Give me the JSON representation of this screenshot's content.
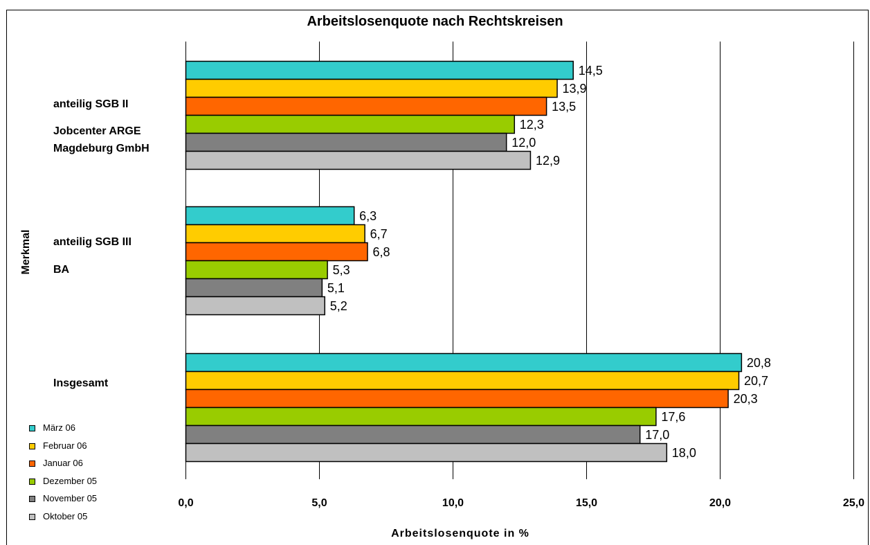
{
  "chart_data": {
    "type": "bar",
    "orientation": "horizontal",
    "title": "Arbeitslosenquote nach Rechtskreisen",
    "xlabel": "Arbeitslosenquote in %",
    "ylabel": "Merkmal",
    "xlim": [
      0,
      25
    ],
    "xticks": [
      "0,0",
      "5,0",
      "10,0",
      "15,0",
      "20,0",
      "25,0"
    ],
    "grid": "vertical",
    "legend_position": "bottom-left",
    "categories": [
      [
        "anteilig SGB II",
        "Jobcenter ARGE",
        "Magdeburg GmbH"
      ],
      [
        "anteilig SGB III",
        "BA"
      ],
      [
        "Insgesamt"
      ]
    ],
    "series": [
      {
        "name": "März 06",
        "color": "#33CCCC",
        "values": [
          14.5,
          6.3,
          20.8
        ],
        "labels": [
          "14,5",
          "6,3",
          "20,8"
        ]
      },
      {
        "name": "Februar 06",
        "color": "#FFCC00",
        "values": [
          13.9,
          6.7,
          20.7
        ],
        "labels": [
          "13,9",
          "6,7",
          "20,7"
        ]
      },
      {
        "name": "Januar 06",
        "color": "#FF6600",
        "values": [
          13.5,
          6.8,
          20.3
        ],
        "labels": [
          "13,5",
          "6,8",
          "20,3"
        ]
      },
      {
        "name": "Dezember 05",
        "color": "#99CC00",
        "values": [
          12.3,
          5.3,
          17.6
        ],
        "labels": [
          "12,3",
          "5,3",
          "17,6"
        ]
      },
      {
        "name": "November 05",
        "color": "#808080",
        "values": [
          12.0,
          5.1,
          17.0
        ],
        "labels": [
          "12,0",
          "5,1",
          "17,0"
        ]
      },
      {
        "name": "Oktober 05",
        "color": "#C0C0C0",
        "values": [
          12.9,
          5.2,
          18.0
        ],
        "labels": [
          "12,9",
          "5,2",
          "18,0"
        ]
      }
    ]
  }
}
